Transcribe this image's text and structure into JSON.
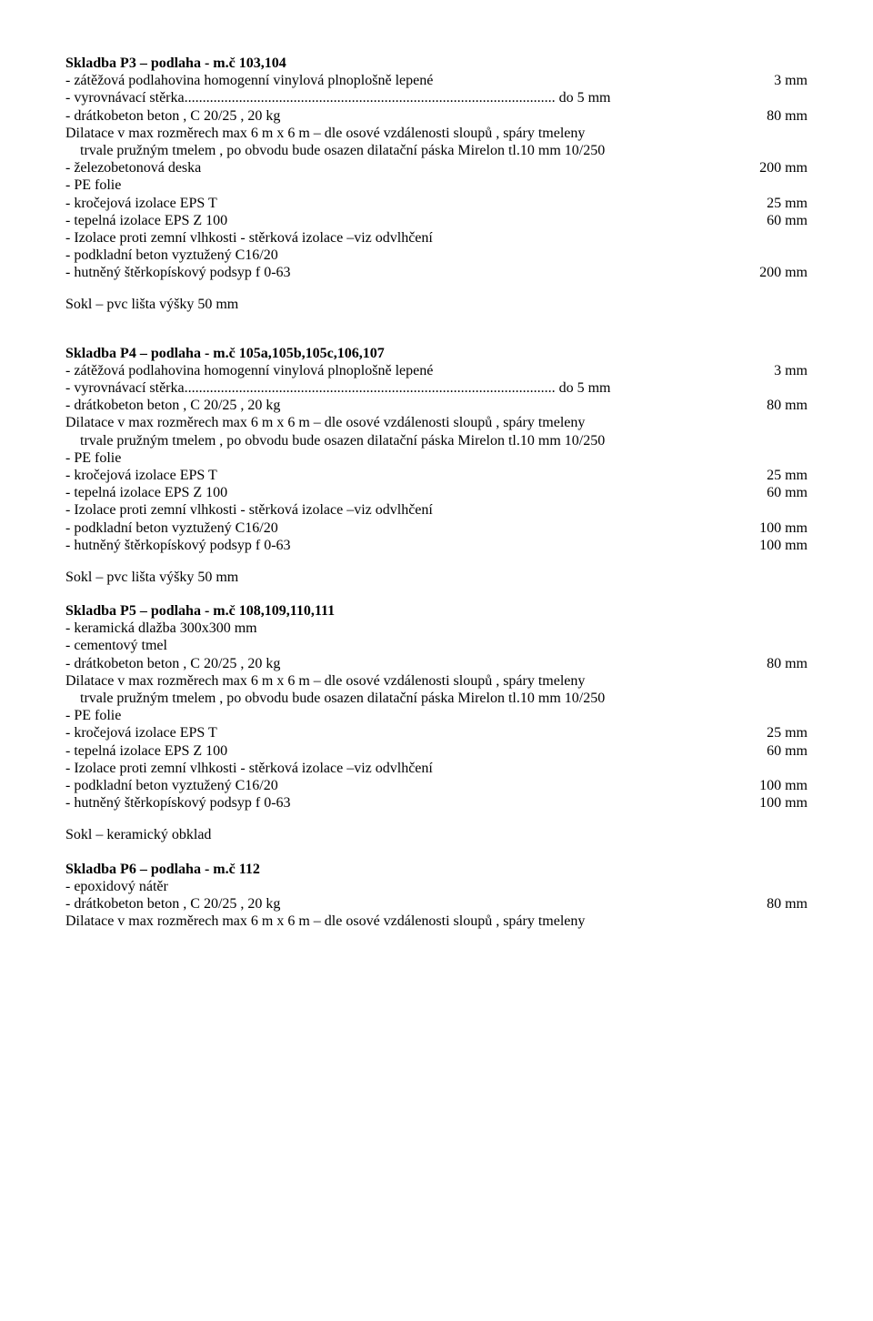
{
  "p3": {
    "title": "Skladba P3 – podlaha    - m.č 103,104",
    "rows": [
      {
        "left": "- zátěžová  podlahovina  homogenní vinylová plnoplošně lepené",
        "right": "3 mm"
      },
      {
        "left": "- vyrovnávací stěrka...................................................................................................... do 5 mm",
        "right": ""
      },
      {
        "left": "- drátkobeton  beton , C 20/25 , 20 kg",
        "right": "80 mm"
      },
      {
        "left": "Dilatace v max rozměrech max 6 m x 6 m – dle osové vzdálenosti sloupů , spáry tmeleny",
        "right": ""
      },
      {
        "left": "trvale pružným tmelem , po obvodu bude osazen dilatační páska Mirelon tl.10 mm  10/250",
        "right": "",
        "indent": true
      },
      {
        "left": "- železobetonová deska",
        "right": "200 mm"
      },
      {
        "left": "- PE folie",
        "right": ""
      },
      {
        "left": "- kročejová izolace EPS T",
        "right": "25 mm"
      },
      {
        "left": "- tepelná izolace EPS Z 100",
        "right": "60 mm"
      },
      {
        "left": "- Izolace proti zemní vlhkosti  - stěrková izolace –viz odvlhčení",
        "right": ""
      },
      {
        "left": "- podkladní beton vyztužený C16/20",
        "right": ""
      },
      {
        "left": "- hutněný štěrkopískový podsyp f 0-63",
        "right": "200 mm"
      }
    ],
    "footer": "Sokl – pvc lišta  výšky 50 mm"
  },
  "p4": {
    "title": "Skladba P4 – podlaha    - m.č 105a,105b,105c,106,107",
    "rows": [
      {
        "left": "- zátěžová  podlahovina  homogenní vinylová plnoplošně lepené",
        "right": "3 mm"
      },
      {
        "left": "- vyrovnávací stěrka...................................................................................................... do 5 mm",
        "right": ""
      },
      {
        "left": "- drátkobeton  beton , C 20/25 , 20 kg",
        "right": "80 mm"
      },
      {
        "left": "Dilatace v max rozměrech max 6 m x 6 m – dle osové vzdálenosti sloupů , spáry tmeleny",
        "right": ""
      },
      {
        "left": "trvale pružným tmelem , po obvodu bude osazen dilatační páska Mirelon tl.10 mm  10/250",
        "right": "",
        "indent": true
      },
      {
        "left": "- PE folie",
        "right": ""
      },
      {
        "left": "- kročejová izolace EPS T",
        "right": "25 mm"
      },
      {
        "left": "- tepelná izolace EPS Z 100",
        "right": "60 mm"
      },
      {
        "left": "- Izolace proti zemní vlhkosti  - stěrková izolace –viz odvlhčení",
        "right": ""
      },
      {
        "left": "- podkladní beton vyztužený C16/20",
        "right": "100 mm"
      },
      {
        "left": "- hutněný štěrkopískový podsyp f 0-63",
        "right": "100 mm"
      }
    ],
    "footer": "Sokl – pvc lišta  výšky 50 mm"
  },
  "p5": {
    "title": "Skladba P5 – podlaha    - m.č 108,109,110,111",
    "rows": [
      {
        "left": "- keramická dlažba 300x300 mm",
        "right": ""
      },
      {
        "left": "- cementový tmel",
        "right": ""
      },
      {
        "left": "- drátkobeton  beton , C 20/25 , 20 kg",
        "right": "80 mm"
      },
      {
        "left": "Dilatace v max rozměrech max 6 m x 6 m – dle osové vzdálenosti sloupů , spáry tmeleny",
        "right": ""
      },
      {
        "left": "trvale pružným tmelem , po obvodu bude osazen dilatační páska Mirelon tl.10 mm  10/250",
        "right": "",
        "indent": true
      },
      {
        "left": "- PE folie",
        "right": ""
      },
      {
        "left": "- kročejová izolace EPS T",
        "right": "25 mm"
      },
      {
        "left": "- tepelná izolace EPS Z 100",
        "right": "60 mm"
      },
      {
        "left": "- Izolace proti zemní vlhkosti  - stěrková izolace –viz odvlhčení",
        "right": ""
      },
      {
        "left": "- podkladní beton vyztužený C16/20",
        "right": "100 mm"
      },
      {
        "left": "- hutněný štěrkopískový podsyp f 0-63",
        "right": "100 mm"
      }
    ],
    "footer": "Sokl – keramický obklad"
  },
  "p6": {
    "title": "Skladba P6 – podlaha    - m.č 112",
    "rows": [
      {
        "left": "- epoxidový nátěr",
        "right": ""
      },
      {
        "left": "- drátkobeton  beton , C 20/25 , 20 kg",
        "right": "80 mm"
      },
      {
        "left": "Dilatace v max rozměrech max 6 m x 6 m – dle osové vzdálenosti sloupů , spáry tmeleny",
        "right": ""
      }
    ]
  }
}
